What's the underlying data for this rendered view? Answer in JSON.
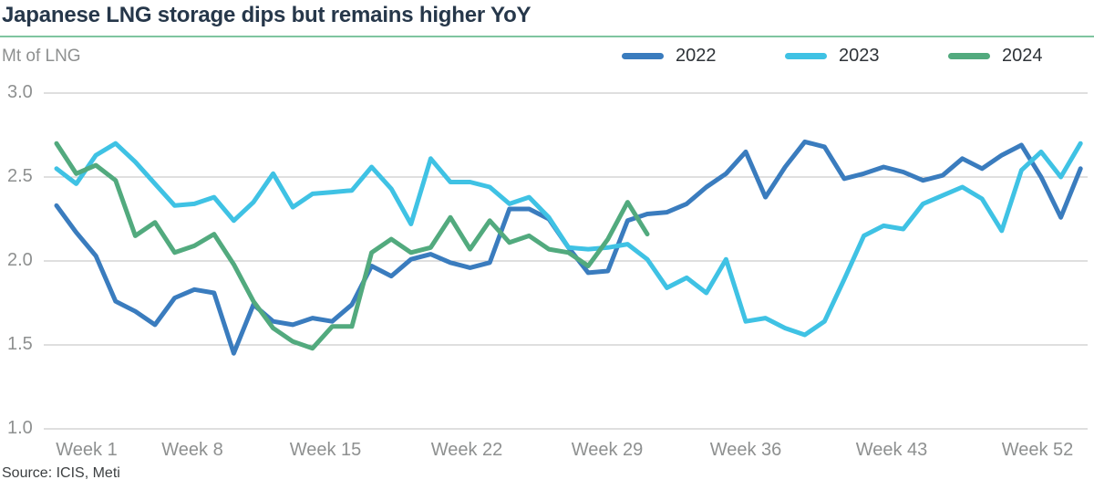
{
  "header": {
    "title": "Japanese LNG storage dips but remains higher YoY",
    "unit_label": "Mt of LNG"
  },
  "legend": [
    {
      "label": "2022",
      "color": "#3a7cbe"
    },
    {
      "label": "2023",
      "color": "#3fc2e4"
    },
    {
      "label": "2024",
      "color": "#52aa7e"
    }
  ],
  "source": "Source: ICIS, Meti",
  "colors": {
    "title": "#26374a",
    "title_rule": "#7fc5a0",
    "gridline": "#bfbfbf",
    "axis_text": "#8e9090"
  },
  "chart_data": {
    "type": "line",
    "title": "Japanese LNG storage dips but remains higher YoY",
    "ylabel": "Mt of LNG",
    "xlabel": "",
    "ylim": [
      1.0,
      3.0
    ],
    "grid": true,
    "legend_position": "top-right",
    "y_ticks": [
      3.0,
      2.5,
      2.0,
      1.5,
      1.0
    ],
    "y_tick_labels": [
      "3.0",
      "2.5",
      "2.0",
      "1.5",
      "1.0"
    ],
    "x_unit": "week",
    "x_tick_weeks": [
      1,
      8,
      15,
      22,
      29,
      36,
      43,
      52
    ],
    "x_tick_labels": [
      "Week 1",
      "Week 8",
      "Week 15",
      "Week 22",
      "Week 29",
      "Week 36",
      "Week 43",
      "Week 52"
    ],
    "series": [
      {
        "name": "2022",
        "color": "#3a7cbe",
        "values": [
          2.33,
          2.17,
          2.03,
          1.76,
          1.7,
          1.62,
          1.78,
          1.83,
          1.81,
          1.45,
          1.74,
          1.64,
          1.62,
          1.66,
          1.64,
          1.74,
          1.97,
          1.91,
          2.01,
          2.04,
          1.99,
          1.96,
          1.99,
          2.31,
          2.31,
          2.25,
          2.08,
          1.93,
          1.94,
          2.24,
          2.28,
          2.29,
          2.34,
          2.44,
          2.52,
          2.65,
          2.38,
          2.56,
          2.71,
          2.68,
          2.49,
          2.52,
          2.56,
          2.53,
          2.48,
          2.51,
          2.61,
          2.55,
          2.63,
          2.69,
          2.5,
          2.26,
          2.55
        ]
      },
      {
        "name": "2023",
        "color": "#3fc2e4",
        "values": [
          2.55,
          2.46,
          2.63,
          2.7,
          2.59,
          2.46,
          2.33,
          2.34,
          2.38,
          2.24,
          2.35,
          2.52,
          2.32,
          2.4,
          2.41,
          2.42,
          2.56,
          2.43,
          2.22,
          2.61,
          2.47,
          2.47,
          2.44,
          2.34,
          2.38,
          2.26,
          2.08,
          2.07,
          2.08,
          2.1,
          2.01,
          1.84,
          1.9,
          1.81,
          2.01,
          1.64,
          1.66,
          1.6,
          1.56,
          1.64,
          1.89,
          2.15,
          2.21,
          2.19,
          2.34,
          2.39,
          2.44,
          2.37,
          2.18,
          2.54,
          2.65,
          2.5,
          2.7
        ]
      },
      {
        "name": "2024",
        "color": "#52aa7e",
        "values": [
          2.7,
          2.52,
          2.57,
          2.48,
          2.15,
          2.23,
          2.05,
          2.09,
          2.16,
          1.98,
          1.76,
          1.6,
          1.52,
          1.48,
          1.61,
          1.61,
          2.05,
          2.13,
          2.05,
          2.08,
          2.26,
          2.07,
          2.24,
          2.11,
          2.15,
          2.07,
          2.05,
          1.97,
          2.13,
          2.35,
          2.16
        ]
      }
    ]
  }
}
